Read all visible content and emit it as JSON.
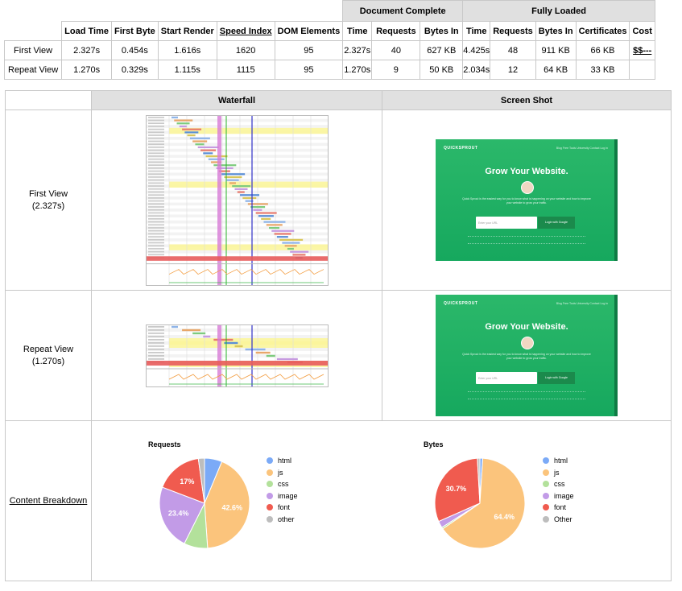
{
  "summary": {
    "groups": {
      "doc_complete": "Document Complete",
      "fully_loaded": "Fully Loaded"
    },
    "columns": [
      "Load Time",
      "First Byte",
      "Start Render",
      "Speed Index",
      "DOM Elements",
      "Time",
      "Requests",
      "Bytes In",
      "Time",
      "Requests",
      "Bytes In",
      "Certificates",
      "Cost"
    ],
    "rows": [
      {
        "label": "First View",
        "load_time": "2.327s",
        "first_byte": "0.454s",
        "start_render": "1.616s",
        "speed_index": "1620",
        "dom_elements": "95",
        "doc_time": "2.327s",
        "doc_requests": "40",
        "doc_bytes": "627 KB",
        "full_time": "4.425s",
        "full_requests": "48",
        "full_bytes": "911 KB",
        "certificates": "66 KB",
        "cost": "$$---"
      },
      {
        "label": "Repeat View",
        "load_time": "1.270s",
        "first_byte": "0.329s",
        "start_render": "1.115s",
        "speed_index": "1115",
        "dom_elements": "95",
        "doc_time": "1.270s",
        "doc_requests": "9",
        "doc_bytes": "50 KB",
        "full_time": "2.034s",
        "full_requests": "12",
        "full_bytes": "64 KB",
        "certificates": "33 KB",
        "cost": ""
      }
    ]
  },
  "details": {
    "headers": {
      "waterfall": "Waterfall",
      "screenshot": "Screen Shot"
    },
    "first_view": {
      "label": "First View",
      "time": "(2.327s)"
    },
    "repeat_view": {
      "label": "Repeat View",
      "time": "(1.270s)"
    },
    "content_breakdown": "Content Breakdown"
  },
  "screenshot": {
    "logo": "QUICKSPROUT",
    "nav": "Blog   Free Tools   University   Contact   Log in",
    "headline": "Grow Your Website.",
    "body": "Quick Sprout is the easiest way for you to know what is happening on your website and how to improve your website to grow your traffic.",
    "input_placeholder": "Enter your URL",
    "button": "Login with Google"
  },
  "chart_data": [
    {
      "type": "pie",
      "title": "Requests",
      "categories": [
        "html",
        "js",
        "css",
        "image",
        "font",
        "other"
      ],
      "values": [
        6.3,
        42.6,
        8.5,
        23.4,
        17.0,
        2.2
      ],
      "labels": [
        "",
        "42.6%",
        "",
        "23.4%",
        "17%",
        ""
      ],
      "legend": "right",
      "colors": [
        "#7baaf7",
        "#fbc47c",
        "#b3e19b",
        "#c29be7",
        "#f05b4f",
        "#bdbdbd"
      ]
    },
    {
      "type": "pie",
      "title": "Bytes",
      "categories": [
        "html",
        "js",
        "css",
        "image",
        "font",
        "Other"
      ],
      "values": [
        1.0,
        64.4,
        0.6,
        2.4,
        30.7,
        0.9
      ],
      "labels": [
        "",
        "64.4%",
        "",
        "",
        "30.7%",
        ""
      ],
      "legend": "right",
      "colors": [
        "#7baaf7",
        "#fbc47c",
        "#b3e19b",
        "#c29be7",
        "#f05b4f",
        "#bdbdbd"
      ]
    }
  ]
}
